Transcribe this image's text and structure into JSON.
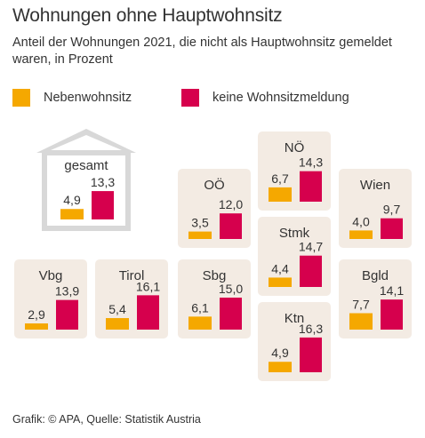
{
  "title": "Wohnungen ohne Hauptwohnsitz",
  "subtitle": "Anteil der Wohnungen 2021, die nicht als Hauptwohnsitz gemeldet waren, in Prozent",
  "legend": {
    "nebenwohnsitz": "Nebenwohnsitz",
    "keine": "keine Wohnsitzmeldung"
  },
  "colors": {
    "nebenwohnsitz": "#f5a800",
    "keine": "#d6004d",
    "tile": "#f3ebe3",
    "house": "#d8d8d8"
  },
  "source": "Grafik: © APA, Quelle: Statistik Austria",
  "chart_data": {
    "type": "bar",
    "series": [
      {
        "name": "Nebenwohnsitz",
        "key": "nebenwohnsitz"
      },
      {
        "name": "keine Wohnsitzmeldung",
        "key": "keine"
      }
    ],
    "regions": [
      {
        "key": "gesamt",
        "name": "gesamt",
        "nebenwohnsitz": 4.9,
        "keine": 13.3,
        "nebenwohnsitz_label": "4,9",
        "keine_label": "13,3"
      },
      {
        "key": "noe",
        "name": "NÖ",
        "nebenwohnsitz": 6.7,
        "keine": 14.3,
        "nebenwohnsitz_label": "6,7",
        "keine_label": "14,3"
      },
      {
        "key": "ooe",
        "name": "OÖ",
        "nebenwohnsitz": 3.5,
        "keine": 12.0,
        "nebenwohnsitz_label": "3,5",
        "keine_label": "12,0"
      },
      {
        "key": "wien",
        "name": "Wien",
        "nebenwohnsitz": 4.0,
        "keine": 9.7,
        "nebenwohnsitz_label": "4,0",
        "keine_label": "9,7"
      },
      {
        "key": "stmk",
        "name": "Stmk",
        "nebenwohnsitz": 4.4,
        "keine": 14.7,
        "nebenwohnsitz_label": "4,4",
        "keine_label": "14,7"
      },
      {
        "key": "vbg",
        "name": "Vbg",
        "nebenwohnsitz": 2.9,
        "keine": 13.9,
        "nebenwohnsitz_label": "2,9",
        "keine_label": "13,9"
      },
      {
        "key": "tirol",
        "name": "Tirol",
        "nebenwohnsitz": 5.4,
        "keine": 16.1,
        "nebenwohnsitz_label": "5,4",
        "keine_label": "16,1"
      },
      {
        "key": "sbg",
        "name": "Sbg",
        "nebenwohnsitz": 6.1,
        "keine": 15.0,
        "nebenwohnsitz_label": "6,1",
        "keine_label": "15,0"
      },
      {
        "key": "bgld",
        "name": "Bgld",
        "nebenwohnsitz": 7.7,
        "keine": 14.1,
        "nebenwohnsitz_label": "7,7",
        "keine_label": "14,1"
      },
      {
        "key": "ktn",
        "name": "Ktn",
        "nebenwohnsitz": 4.9,
        "keine": 16.3,
        "nebenwohnsitz_label": "4,9",
        "keine_label": "16,3"
      }
    ]
  }
}
